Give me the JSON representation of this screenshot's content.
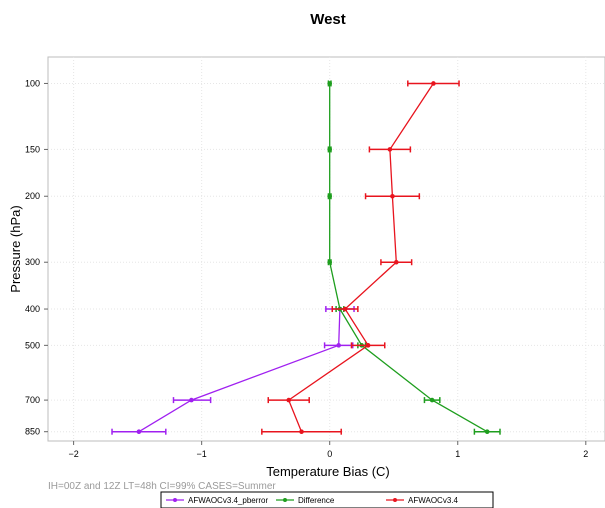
{
  "chart_data": {
    "type": "line",
    "title": "West",
    "xlabel": "Temperature Bias (C)",
    "ylabel": "Pressure (hPa)",
    "xlim": [
      -2.2,
      2.15
    ],
    "ylim": [
      85,
      900
    ],
    "y_scale": "log",
    "y_inverted": true,
    "grid": true,
    "x_ticks": [
      -2,
      -1,
      0,
      1,
      2
    ],
    "x_tick_labels": [
      "−2",
      "−1",
      "0",
      "1",
      "2"
    ],
    "y_ticks": [
      100,
      150,
      200,
      300,
      400,
      500,
      700,
      850
    ],
    "y_tick_labels": [
      "100",
      "150",
      "200",
      "300",
      "400",
      "500",
      "700",
      "850"
    ],
    "footnote": "IH=00Z and 12Z  LT=48h CI=99% CASES=Summer",
    "legend_position": "bottom",
    "series": [
      {
        "name": "AFWAOCv3.4_pberror",
        "color": "#a020f0",
        "points": [
          {
            "p": 400,
            "x": 0.08,
            "lo": -0.03,
            "hi": 0.19
          },
          {
            "p": 500,
            "x": 0.07,
            "lo": -0.04,
            "hi": 0.18
          },
          {
            "p": 700,
            "x": -1.08,
            "lo": -1.22,
            "hi": -0.93
          },
          {
            "p": 850,
            "x": -1.49,
            "lo": -1.7,
            "hi": -1.28
          }
        ]
      },
      {
        "name": "Difference",
        "color": "#1e9e1e",
        "points": [
          {
            "p": 100,
            "x": 0.0,
            "lo": -0.01,
            "hi": 0.01
          },
          {
            "p": 150,
            "x": 0.0,
            "lo": -0.01,
            "hi": 0.01
          },
          {
            "p": 200,
            "x": 0.0,
            "lo": -0.01,
            "hi": 0.01
          },
          {
            "p": 300,
            "x": 0.0,
            "lo": -0.01,
            "hi": 0.01
          },
          {
            "p": 400,
            "x": 0.08,
            "lo": 0.05,
            "hi": 0.11
          },
          {
            "p": 500,
            "x": 0.25,
            "lo": 0.22,
            "hi": 0.28
          },
          {
            "p": 700,
            "x": 0.8,
            "lo": 0.74,
            "hi": 0.86
          },
          {
            "p": 850,
            "x": 1.23,
            "lo": 1.13,
            "hi": 1.33
          }
        ]
      },
      {
        "name": "AFWAOCv3.4",
        "color": "#e8141e",
        "points": [
          {
            "p": 100,
            "x": 0.81,
            "lo": 0.61,
            "hi": 1.01
          },
          {
            "p": 150,
            "x": 0.47,
            "lo": 0.31,
            "hi": 0.63
          },
          {
            "p": 200,
            "x": 0.49,
            "lo": 0.28,
            "hi": 0.7
          },
          {
            "p": 300,
            "x": 0.52,
            "lo": 0.4,
            "hi": 0.64
          },
          {
            "p": 400,
            "x": 0.12,
            "lo": 0.02,
            "hi": 0.22
          },
          {
            "p": 500,
            "x": 0.3,
            "lo": 0.17,
            "hi": 0.43
          },
          {
            "p": 700,
            "x": -0.32,
            "lo": -0.48,
            "hi": -0.16
          },
          {
            "p": 850,
            "x": -0.22,
            "lo": -0.53,
            "hi": 0.09
          }
        ]
      }
    ]
  }
}
